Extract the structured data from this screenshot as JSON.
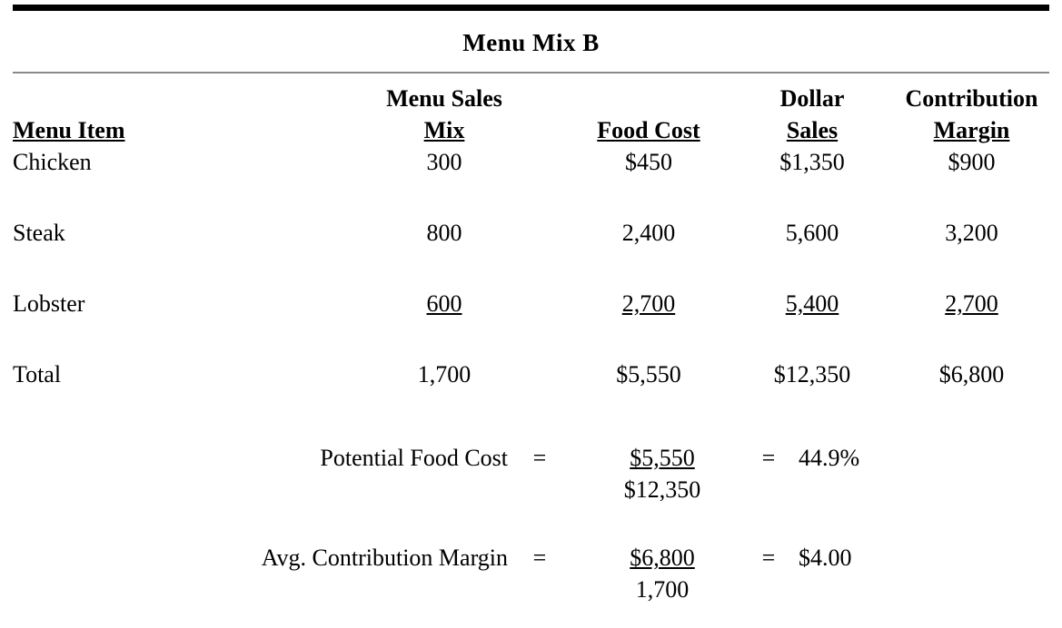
{
  "title": "Menu Mix B",
  "table": {
    "headers": {
      "menu_item": "Menu Item",
      "menu_sales_mix_line1": "Menu Sales",
      "menu_sales_mix_line2": "Mix",
      "food_cost": "Food Cost",
      "dollar_sales_line1": "Dollar",
      "dollar_sales_line2": "Sales",
      "contribution_margin_line1": "Contribution",
      "contribution_margin_line2": "Margin"
    },
    "rows": [
      {
        "item": "Chicken",
        "mix": "300",
        "food_cost": "$450",
        "dollar_sales": "$1,350",
        "contribution_margin": "$900"
      },
      {
        "item": "Steak",
        "mix": "800",
        "food_cost": "2,400",
        "dollar_sales": "5,600",
        "contribution_margin": "3,200"
      },
      {
        "item": "Lobster",
        "mix": "600",
        "food_cost": "2,700",
        "dollar_sales": "5,400",
        "contribution_margin": "2,700"
      },
      {
        "item": "Total",
        "mix": "1,700",
        "food_cost": "$5,550",
        "dollar_sales": "$12,350",
        "contribution_margin": "$6,800"
      }
    ]
  },
  "formulas": [
    {
      "label": "Potential Food Cost",
      "equals1": "=",
      "numerator": "$5,550",
      "denominator": "$12,350",
      "equals2": "=",
      "result": "44.9%"
    },
    {
      "label": "Avg. Contribution Margin",
      "equals1": "=",
      "numerator": "$6,800",
      "denominator": "1,700",
      "equals2": "=",
      "result": "$4.00"
    }
  ]
}
